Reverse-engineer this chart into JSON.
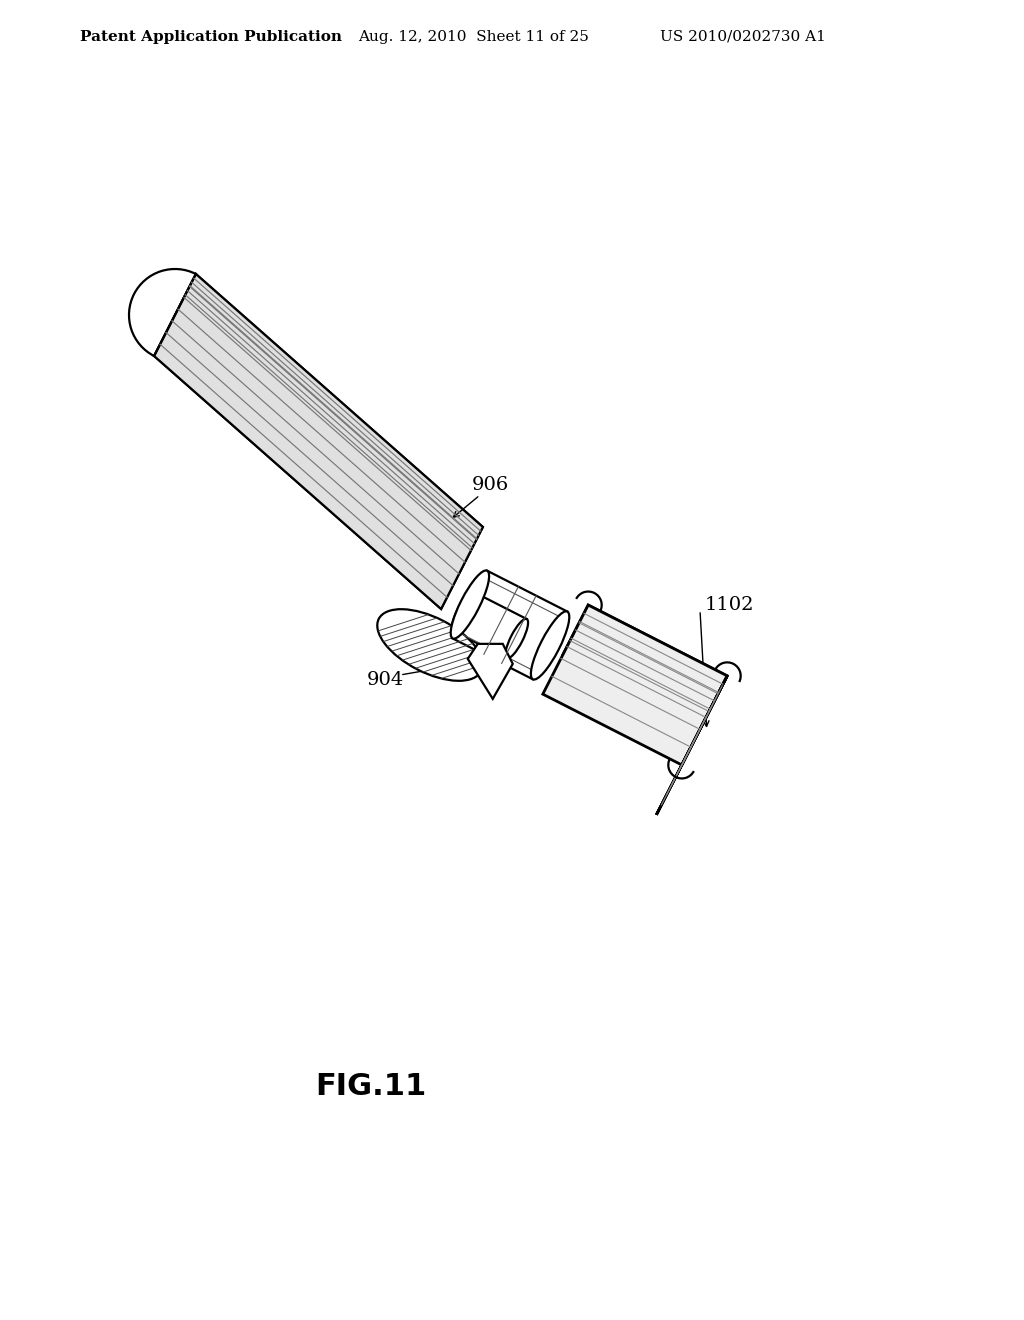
{
  "header_left": "Patent Application Publication",
  "header_mid": "Aug. 12, 2010  Sheet 11 of 25",
  "header_right": "US 2010/0202730 A1",
  "label_906": "906",
  "label_904": "904",
  "label_1102": "1102",
  "fig_label": "FIG.11",
  "bg_color": "#ffffff",
  "line_color": "#000000",
  "header_fontsize": 11,
  "fig_label_fontsize": 22,
  "ref_fontsize": 14
}
